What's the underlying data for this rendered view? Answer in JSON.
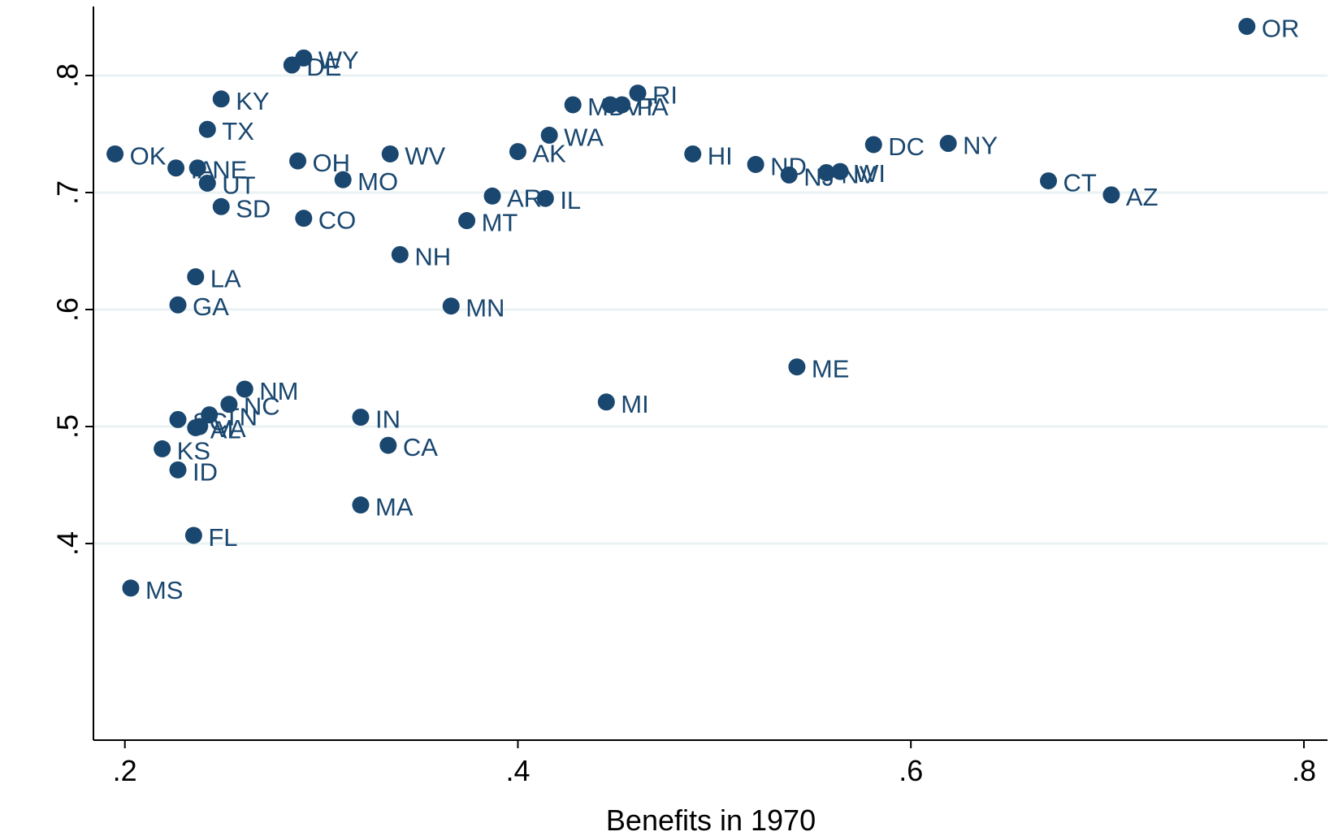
{
  "chart_data": {
    "type": "scatter",
    "x_label": "Benefits in 1970",
    "labels": [
      "OR",
      "WY",
      "DE",
      "KY",
      "TX",
      "OK",
      "IA",
      "NE",
      "UT",
      "SD",
      "OH",
      "MO",
      "WV",
      "CO",
      "NH",
      "AK",
      "WA",
      "AR",
      "IL",
      "MT",
      "MN",
      "MD",
      "VT",
      "PA",
      "RI",
      "HI",
      "ND",
      "NJ",
      "NV",
      "WI",
      "DC",
      "NY",
      "CT",
      "AZ",
      "ME",
      "MI",
      "LA",
      "GA",
      "NM",
      "NC",
      "SC",
      "TN",
      "VA",
      "AL",
      "IN",
      "CA",
      "KS",
      "ID",
      "MA",
      "FL",
      "MS"
    ],
    "x": [
      0.771,
      0.291,
      0.285,
      0.249,
      0.242,
      0.195,
      0.226,
      0.237,
      0.242,
      0.249,
      0.288,
      0.311,
      0.335,
      0.291,
      0.34,
      0.4,
      0.416,
      0.387,
      0.414,
      0.374,
      0.366,
      0.428,
      0.447,
      0.453,
      0.461,
      0.489,
      0.521,
      0.538,
      0.557,
      0.564,
      0.581,
      0.619,
      0.67,
      0.702,
      0.542,
      0.445,
      0.236,
      0.227,
      0.261,
      0.253,
      0.227,
      0.243,
      0.238,
      0.236,
      0.32,
      0.334,
      0.219,
      0.227,
      0.32,
      0.235,
      0.203
    ],
    "y": [
      0.842,
      0.815,
      0.809,
      0.78,
      0.754,
      0.733,
      0.721,
      0.721,
      0.708,
      0.688,
      0.727,
      0.711,
      0.733,
      0.678,
      0.647,
      0.735,
      0.749,
      0.697,
      0.695,
      0.676,
      0.603,
      0.775,
      0.775,
      0.775,
      0.785,
      0.733,
      0.724,
      0.715,
      0.717,
      0.718,
      0.741,
      0.742,
      0.71,
      0.698,
      0.551,
      0.521,
      0.628,
      0.604,
      0.532,
      0.519,
      0.506,
      0.51,
      0.5,
      0.499,
      0.508,
      0.484,
      0.481,
      0.463,
      0.433,
      0.407,
      0.362
    ],
    "color": "#1a476f",
    "xlim": [
      0.184,
      0.812
    ],
    "ylim": [
      0.232,
      0.859
    ],
    "xticks": [
      {
        "value": 0.2,
        "label": ".2"
      },
      {
        "value": 0.4,
        "label": ".4"
      },
      {
        "value": 0.6,
        "label": ".6"
      },
      {
        "value": 0.8,
        "label": ".8"
      }
    ],
    "yticks": [
      {
        "value": 0.4,
        "label": ".4"
      },
      {
        "value": 0.5,
        "label": ".5"
      },
      {
        "value": 0.6,
        "label": ".6"
      },
      {
        "value": 0.7,
        "label": ".7"
      },
      {
        "value": 0.8,
        "label": ".8"
      }
    ],
    "grid": true
  }
}
